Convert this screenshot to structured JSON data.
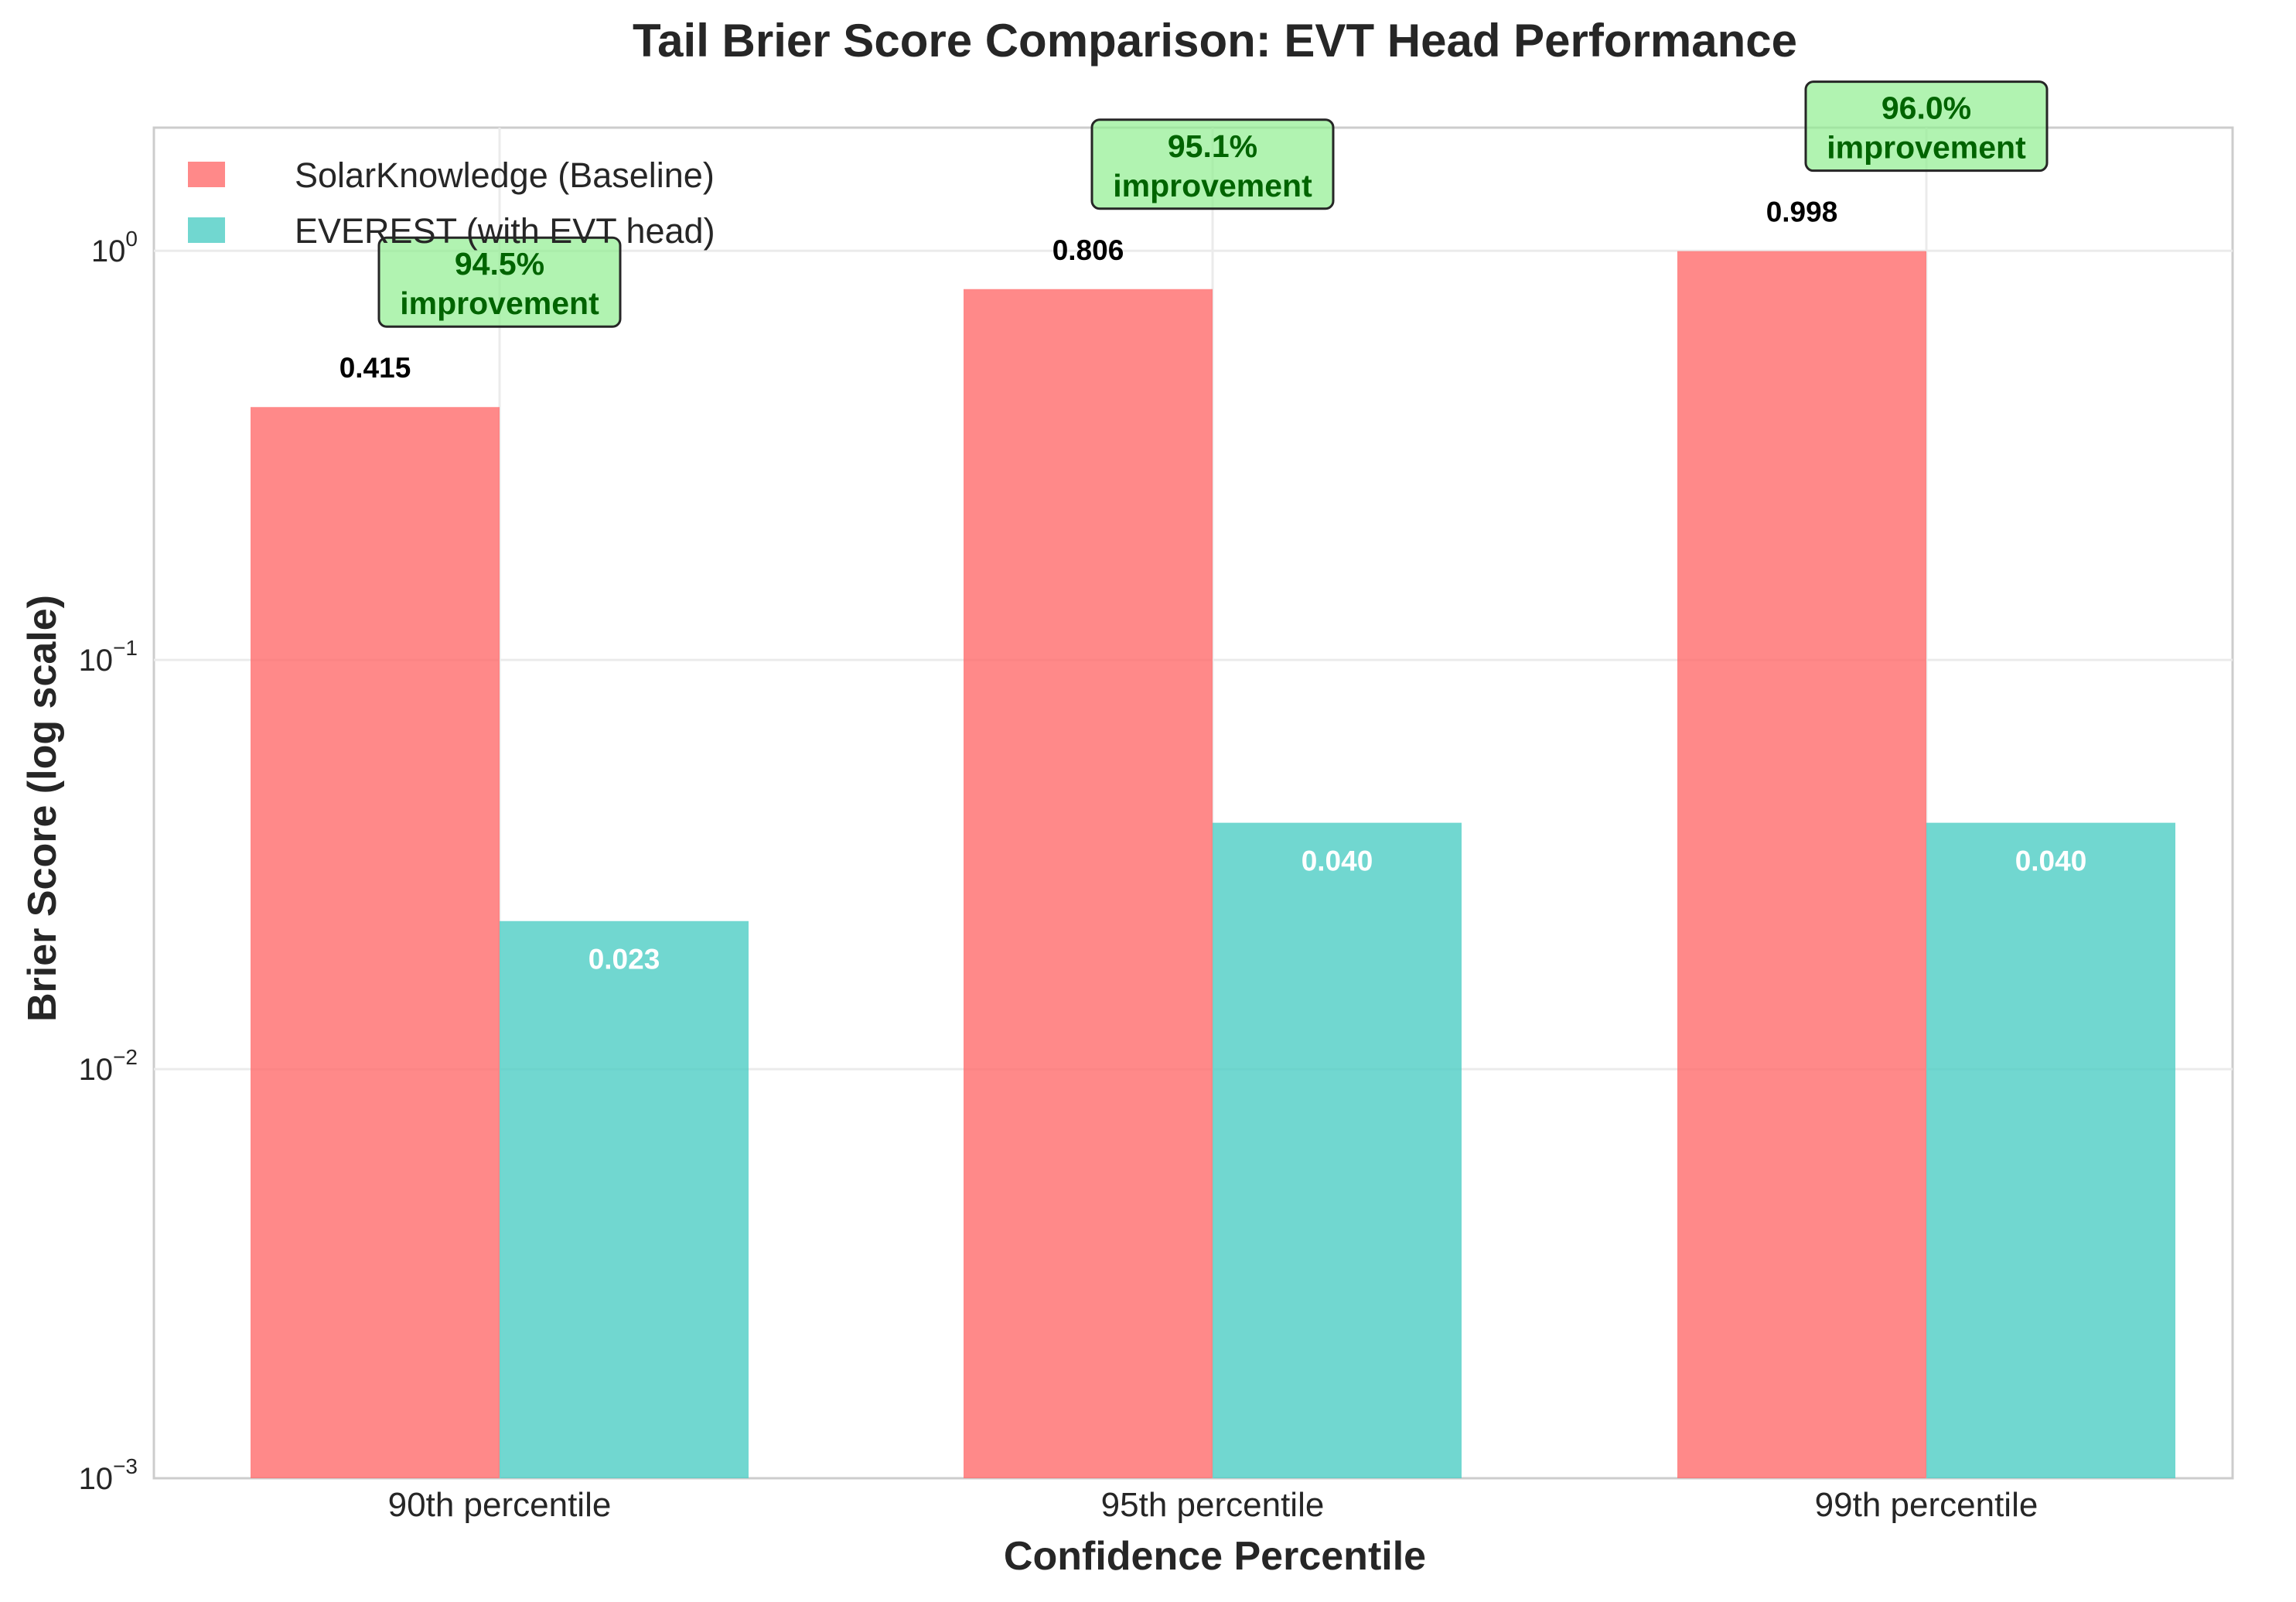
{
  "chart_data": {
    "type": "bar",
    "title": "Tail Brier Score Comparison: EVT Head Performance",
    "xlabel": "Confidence Percentile",
    "ylabel": "Brier Score (log scale)",
    "y_scale": "log",
    "ylim": [
      0.001,
      2.0
    ],
    "y_ticks": [
      {
        "value": 0.001,
        "base": "10",
        "exp": "−3"
      },
      {
        "value": 0.01,
        "base": "10",
        "exp": "−2"
      },
      {
        "value": 0.1,
        "base": "10",
        "exp": "−1"
      },
      {
        "value": 1,
        "base": "10",
        "exp": "0"
      }
    ],
    "grid": true,
    "legend_position": "top-left",
    "categories": [
      "90th percentile",
      "95th percentile",
      "99th percentile"
    ],
    "series": [
      {
        "name": "SolarKnowledge (Baseline)",
        "color": "#ff6b6b",
        "values": [
          0.415,
          0.806,
          0.998
        ],
        "labels": [
          "0.415",
          "0.806",
          "0.998"
        ]
      },
      {
        "name": "EVEREST (with EVT head)",
        "color": "#4ecdc4",
        "values": [
          0.023,
          0.04,
          0.04
        ],
        "labels": [
          "0.023",
          "0.040",
          "0.040"
        ]
      }
    ],
    "annotations": [
      {
        "category": "90th percentile",
        "value": 94.5,
        "line1": "94.5%",
        "line2": "improvement"
      },
      {
        "category": "95th percentile",
        "value": 95.1,
        "line1": "95.1%",
        "line2": "improvement"
      },
      {
        "category": "99th percentile",
        "value": 96.0,
        "line1": "96.0%",
        "line2": "improvement"
      }
    ],
    "annotation_colors": {
      "fill": "#90ee90",
      "text": "#006400",
      "border": "#262626"
    }
  }
}
